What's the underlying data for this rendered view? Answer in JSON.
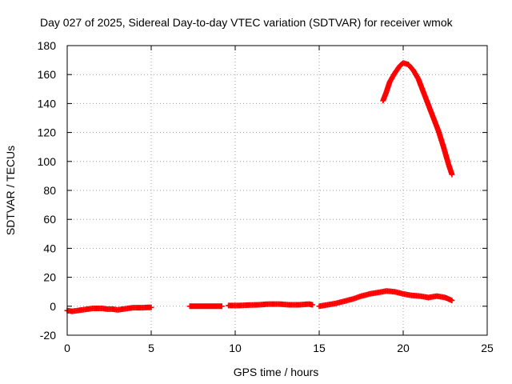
{
  "chart_data": {
    "type": "scatter",
    "title": "Day 027 of 2025, Sidereal Day-to-day VTEC variation (SDTVAR) for receiver wmok",
    "xlabel": "GPS time / hours",
    "ylabel": "SDTVAR / TECUs",
    "xlim": [
      0,
      25
    ],
    "ylim": [
      -20,
      180
    ],
    "xticks": [
      0,
      5,
      10,
      15,
      20,
      25
    ],
    "yticks": [
      -20,
      0,
      20,
      40,
      60,
      80,
      100,
      120,
      140,
      160,
      180
    ],
    "grid": true,
    "marker": "+",
    "series": [
      {
        "name": "baseline",
        "color": "#ff0000",
        "segments": [
          [
            [
              0.0,
              -3
            ],
            [
              0.3,
              -3.5
            ],
            [
              0.6,
              -3
            ],
            [
              0.9,
              -2.5
            ],
            [
              1.2,
              -2
            ],
            [
              1.5,
              -1.5
            ],
            [
              1.8,
              -1.5
            ],
            [
              2.1,
              -1.5
            ],
            [
              2.4,
              -2
            ],
            [
              2.7,
              -2
            ],
            [
              3.0,
              -2.5
            ],
            [
              3.3,
              -2
            ],
            [
              3.6,
              -1.5
            ],
            [
              3.9,
              -1
            ],
            [
              4.2,
              -1
            ],
            [
              4.5,
              -1
            ],
            [
              4.8,
              -0.8
            ],
            [
              5.0,
              -0.8
            ]
          ],
          [
            [
              7.3,
              0
            ],
            [
              7.8,
              0
            ],
            [
              8.3,
              0
            ],
            [
              8.8,
              0
            ],
            [
              9.2,
              0
            ]
          ],
          [
            [
              9.6,
              0.5
            ],
            [
              10.2,
              0.5
            ],
            [
              10.8,
              0.8
            ],
            [
              11.4,
              1
            ],
            [
              12.0,
              1.5
            ],
            [
              12.6,
              1.5
            ],
            [
              13.2,
              1
            ],
            [
              13.8,
              1
            ],
            [
              14.4,
              1.5
            ],
            [
              14.6,
              1
            ]
          ],
          [
            [
              15.0,
              0
            ],
            [
              15.5,
              1
            ],
            [
              16.0,
              2
            ],
            [
              16.5,
              3.5
            ],
            [
              17.0,
              5
            ],
            [
              17.5,
              7
            ],
            [
              18.0,
              8.5
            ],
            [
              18.5,
              9.5
            ],
            [
              19.0,
              10.5
            ],
            [
              19.5,
              10
            ],
            [
              20.0,
              8.5
            ],
            [
              20.5,
              7.5
            ],
            [
              21.0,
              7
            ],
            [
              21.5,
              6
            ],
            [
              22.0,
              7
            ],
            [
              22.5,
              6
            ],
            [
              22.9,
              4
            ]
          ]
        ]
      },
      {
        "name": "peak",
        "color": "#ff0000",
        "segments": [
          [
            [
              18.8,
              142
            ],
            [
              19.0,
              148
            ],
            [
              19.2,
              155
            ],
            [
              19.5,
              161
            ],
            [
              19.8,
              166
            ],
            [
              20.0,
              168
            ],
            [
              20.3,
              167
            ],
            [
              20.6,
              163
            ],
            [
              20.9,
              157
            ],
            [
              21.2,
              148
            ],
            [
              21.5,
              139
            ],
            [
              21.8,
              130
            ],
            [
              22.1,
              121
            ],
            [
              22.4,
              110
            ],
            [
              22.7,
              98
            ],
            [
              22.9,
              91
            ]
          ]
        ]
      }
    ]
  }
}
